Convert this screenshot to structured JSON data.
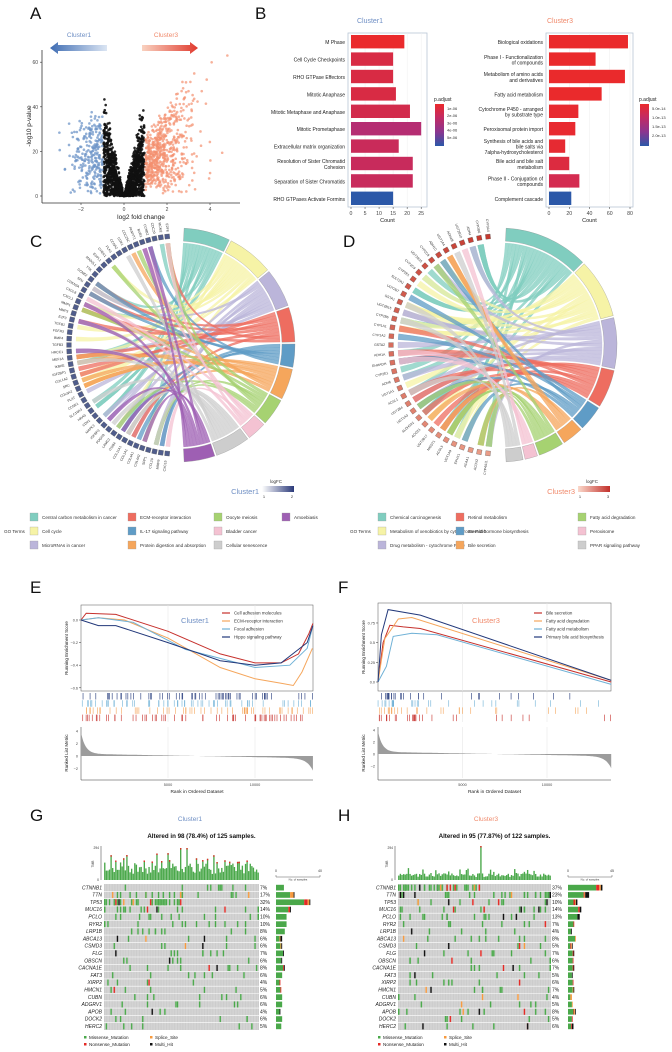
{
  "panel_letters": [
    "A",
    "B",
    "C",
    "D",
    "E",
    "F",
    "G",
    "H"
  ],
  "colors": {
    "cluster1": "#6f8fc4",
    "cluster3": "#f08a6c",
    "missense": "#4aa84a",
    "nonsense": "#e42a25",
    "splice": "#f79a3e",
    "multi_hit": "#111111",
    "grid_bg": "#cccccc"
  },
  "chart_data": [
    {
      "id": "A",
      "type": "scatter",
      "xlabel": "log2 fold change",
      "ylabel": "-log10 p-value",
      "xticks": [
        -2,
        0,
        2,
        4
      ],
      "yticks": [
        0,
        20,
        40,
        60
      ],
      "xlim": [
        -3.8,
        5.3
      ],
      "ylim": [
        -2,
        66
      ],
      "arrows": [
        {
          "label": "Cluster1",
          "direction": "left",
          "color": "#3f6db3"
        },
        {
          "label": "Cluster3",
          "direction": "right",
          "color": "#e03a2e"
        }
      ],
      "groups": [
        {
          "color": "#6f95c8",
          "rule": "log2FC < -1"
        },
        {
          "color": "#111111",
          "rule": "|log2FC| <= 1"
        },
        {
          "color": "#f4906f",
          "rule": "log2FC > 1"
        }
      ]
    },
    {
      "id": "B1",
      "type": "bar",
      "title": "Cluster1",
      "xlabel": "Count",
      "xticks": [
        0,
        5,
        10,
        15,
        20,
        25
      ],
      "xlim": [
        0,
        26
      ],
      "categories": [
        "M Phase",
        "Cell Cycle Checkpoints",
        "RHO GTPase Effectors",
        "Mitotic Anaphase",
        "Mitotic Metaphase and Anaphase",
        "Mitotic Prometaphase",
        "Extracellular matrix organization",
        "Resolution of Sister Chromatid\nCohesion",
        "Separation of Sister Chromatids",
        "RHO GTPases Activate Formins"
      ],
      "values": [
        19,
        15,
        15,
        16,
        21,
        25,
        17,
        22,
        22,
        15
      ],
      "bar_colors": [
        "#ea2a2c",
        "#d82b44",
        "#d82b44",
        "#d82b44",
        "#d22b4c",
        "#b52d72",
        "#c92b5a",
        "#c82b5c",
        "#c82b5c",
        "#2b58a8"
      ],
      "legend": {
        "title": "p.adjust",
        "labels": [
          "1e-06",
          "2e-06",
          "3e-06",
          "4e-06",
          "5e-06"
        ]
      }
    },
    {
      "id": "B3",
      "type": "bar",
      "title": "Cluster3",
      "xlabel": "Count",
      "xticks": [
        0,
        20,
        40,
        60,
        80
      ],
      "xlim": [
        0,
        80
      ],
      "categories": [
        "Biological oxidations",
        "Phase I - Functionalization\nof compounds",
        "Metabolism of amino acids\nand derivatives",
        "Fatty acid metabolism",
        "Cytochrome P450 - arranged\nby substrate type",
        "Peroxisomal protein import",
        "Synthesis of bile acids and\nbile salts via\n7alpha-hydroxycholesterol",
        "Bile acid and bile salt\nmetabolism",
        "Phase II - Conjugation of\ncompounds",
        "Complement cascade"
      ],
      "values": [
        78,
        46,
        75,
        52,
        29,
        26,
        16,
        20,
        30,
        22
      ],
      "bar_colors": [
        "#ea2a2c",
        "#ea2a2c",
        "#ea2a2c",
        "#ea2a2c",
        "#e82a30",
        "#e82a30",
        "#e62a32",
        "#dc2b40",
        "#d42b50",
        "#2b58a8"
      ],
      "legend": {
        "title": "p.adjust",
        "labels": [
          "5.0e-14",
          "1.0e-13",
          "1.5e-13",
          "2.0e-13"
        ]
      }
    },
    {
      "id": "C",
      "type": "chord",
      "cluster_label": "Cluster1",
      "legend_title": "GO Terms",
      "logfc": {
        "title": "logFC",
        "labels": [
          "1",
          "2"
        ],
        "low": "#ffffff",
        "high": "#2b3a7a"
      },
      "genes": [
        "E2F8",
        "MCM2",
        "CDC20",
        "CCNB2",
        "BUB1",
        "PKMYT1",
        "CDC25C",
        "CDK1",
        "CCNA2",
        "PLK1",
        "CHEK1",
        "ESPL1",
        "MAD2L1",
        "TTK",
        "CCNE2",
        "SFN",
        "CDKN2A",
        "CXCL8",
        "CXCL1",
        "MMP1",
        "MMP3",
        "E2F3",
        "TGFB1",
        "FGFR3",
        "BMP4",
        "TGFB3",
        "HRCC1",
        "MEF1A",
        "IKBKE",
        "IGF2BP1",
        "COL1A2",
        "SRC",
        "COL6A2",
        "PLAT",
        "CCNE1",
        "SLC16A3",
        "HRAS",
        "CDK1",
        "MAPK3",
        "IGFBP3",
        "PDGFB",
        "LAMC2",
        "ITGB4",
        "COL11A1",
        "COL1A1",
        "COL4A1",
        "COL4A2",
        "SPP1",
        "CCL20",
        "MMP9",
        "CXCL5"
      ],
      "terms": [
        {
          "name": "Central carbon metabolism in cancer",
          "color": "#80cdbf",
          "weight": 12
        },
        {
          "name": "Cell cycle",
          "color": "#f6f3a6",
          "weight": 12
        },
        {
          "name": "MicroRNAs in cancer",
          "color": "#bbb5da",
          "weight": 10
        },
        {
          "name": "ECM-receptor interaction",
          "color": "#ee6d60",
          "weight": 9
        },
        {
          "name": "IL-17 signaling pathway",
          "color": "#5f9cc6",
          "weight": 6
        },
        {
          "name": "Protein digestion and absorption",
          "color": "#f5a65c",
          "weight": 8
        },
        {
          "name": "Oocyte meiosis",
          "color": "#a6d271",
          "weight": 7
        },
        {
          "name": "Bladder cancer",
          "color": "#f4c2d2",
          "weight": 5
        },
        {
          "name": "Cellular senescence",
          "color": "#cdcdcd",
          "weight": 9
        },
        {
          "name": "Amoebiasis",
          "color": "#9e5fb3",
          "weight": 8
        }
      ]
    },
    {
      "id": "D",
      "type": "chord",
      "cluster_label": "Cluster3",
      "legend_title": "GO Terms",
      "logfc": {
        "title": "logFC",
        "labels": [
          "1",
          "3"
        ],
        "low": "#fbd9cb",
        "high": "#c2302b"
      },
      "genes": [
        "CYP3A4",
        "CYP2B6",
        "ADH4",
        "UGT2B10",
        "ADH1B",
        "UGT1A4",
        "ADH1C",
        "CYP2C8",
        "UGT2B15",
        "CYP2C9",
        "CYP2E1",
        "SULT2A1",
        "UGT2B7",
        "GSTA1",
        "UGT2B15",
        "CYP2B6",
        "CYP1A1",
        "CYP1A2",
        "GSTA2",
        "ADH1A",
        "EHHADH",
        "CYP2E1",
        "ADH6",
        "UGT1A1",
        "ACSL1",
        "UGT2B4",
        "UGT1A3",
        "ALDH3A1",
        "ACOX1",
        "UGT2B17",
        "MGST1",
        "ACSL5",
        "UGT1A9",
        "EPHX1",
        "ACAA1",
        "ACOX2",
        "CYP4A11"
      ],
      "terms": [
        {
          "name": "Chemical carcinogenesis",
          "color": "#80cdbf",
          "weight": 20
        },
        {
          "name": "Metabolism of xenobiotics by cytochrome P450",
          "color": "#f6f3a6",
          "weight": 14
        },
        {
          "name": "Drug metabolism - cytochrome P450",
          "color": "#bbb5da",
          "weight": 12
        },
        {
          "name": "Retinol metabolism",
          "color": "#ee6d60",
          "weight": 9
        },
        {
          "name": "Steroid hormone biosynthesis",
          "color": "#5f9cc6",
          "weight": 6
        },
        {
          "name": "Bile secretion",
          "color": "#f5a65c",
          "weight": 5
        },
        {
          "name": "Fatty acid degradation",
          "color": "#a6d271",
          "weight": 6
        },
        {
          "name": "Peroxisome",
          "color": "#f4c2d2",
          "weight": 3
        },
        {
          "name": "PPAR signaling pathway",
          "color": "#cdcdcd",
          "weight": 4
        }
      ]
    },
    {
      "id": "E",
      "type": "line",
      "title": "Cluster1",
      "xlabel": "Rank in Ordered Dataset",
      "ylabel": "Running Enrichment Score",
      "ylabel2": "Ranked List Metric",
      "xticks": [
        5000,
        10000
      ],
      "yticks": [
        0.0,
        -0.2,
        -0.4,
        -0.6
      ],
      "yticks2": [
        4,
        2,
        0,
        -2
      ],
      "xlim": [
        0,
        13330
      ],
      "series": [
        {
          "name": "Cell adhesion molecules",
          "color": "#c6302c",
          "points": [
            [
              0,
              0.0
            ],
            [
              300,
              0.06
            ],
            [
              2000,
              0.05
            ],
            [
              5000,
              -0.1
            ],
            [
              8000,
              -0.3
            ],
            [
              10000,
              -0.38
            ],
            [
              11500,
              -0.38
            ],
            [
              12500,
              -0.3
            ],
            [
              13100,
              -0.12
            ],
            [
              13330,
              -0.03
            ]
          ]
        },
        {
          "name": "ECM-receptor interaction",
          "color": "#f5a65c",
          "points": [
            [
              0,
              0.0
            ],
            [
              1000,
              0.02
            ],
            [
              2500,
              0.0
            ],
            [
              5000,
              -0.16
            ],
            [
              8000,
              -0.42
            ],
            [
              10000,
              -0.52
            ],
            [
              11500,
              -0.56
            ],
            [
              12200,
              -0.58
            ],
            [
              12700,
              -0.46
            ],
            [
              13300,
              -0.25
            ]
          ]
        },
        {
          "name": "Focal adhesion",
          "color": "#6fb1d6",
          "points": [
            [
              0,
              0.0
            ],
            [
              1000,
              0.02
            ],
            [
              3000,
              -0.02
            ],
            [
              6000,
              -0.26
            ],
            [
              9000,
              -0.38
            ],
            [
              10000,
              -0.42
            ],
            [
              12000,
              -0.4
            ],
            [
              13000,
              -0.25
            ],
            [
              13330,
              -0.05
            ]
          ]
        },
        {
          "name": "Hippo signaling pathway",
          "color": "#22387a",
          "points": [
            [
              0,
              0.0
            ],
            [
              1000,
              -0.05
            ],
            [
              2000,
              -0.05
            ],
            [
              5000,
              -0.2
            ],
            [
              8000,
              -0.36
            ],
            [
              10000,
              -0.4
            ],
            [
              11500,
              -0.38
            ],
            [
              13000,
              -0.2
            ],
            [
              13330,
              -0.05
            ]
          ]
        }
      ]
    },
    {
      "id": "F",
      "type": "line",
      "title": "Cluster3",
      "xlabel": "Rank in Ordered Dataset",
      "ylabel": "Running Enrichment Score",
      "ylabel2": "Ranked List Metric",
      "xticks": [
        5000,
        10000
      ],
      "yticks": [
        0.0,
        0.25,
        0.5,
        0.75
      ],
      "yticks2": [
        4,
        2,
        0,
        -2
      ],
      "xlim": [
        0,
        13800
      ],
      "series": [
        {
          "name": "Bile secretion",
          "color": "#c6302c",
          "points": [
            [
              0,
              0.0
            ],
            [
              300,
              0.5
            ],
            [
              700,
              0.72
            ],
            [
              1500,
              0.7
            ],
            [
              2500,
              0.68
            ],
            [
              13800,
              0.0
            ]
          ]
        },
        {
          "name": "Fatty acid degradation",
          "color": "#f5a65c",
          "points": [
            [
              0,
              0.0
            ],
            [
              400,
              0.55
            ],
            [
              1200,
              0.8
            ],
            [
              2000,
              0.82
            ],
            [
              13800,
              0.02
            ]
          ]
        },
        {
          "name": "Fatty acid metabolism",
          "color": "#6fb1d6",
          "points": [
            [
              0,
              0.0
            ],
            [
              500,
              0.2
            ],
            [
              900,
              0.58
            ],
            [
              2000,
              0.62
            ],
            [
              3500,
              0.6
            ],
            [
              13800,
              -0.03
            ]
          ]
        },
        {
          "name": "Primary bile acid biosynthesis",
          "color": "#22387a",
          "points": [
            [
              0,
              0.0
            ],
            [
              200,
              0.6
            ],
            [
              600,
              0.92
            ],
            [
              2500,
              0.85
            ],
            [
              13800,
              0.02
            ]
          ]
        }
      ]
    },
    {
      "id": "G",
      "type": "heatmap",
      "title": "Cluster1",
      "subtitle": "Altered in 98 (78.4%) of 125 samples.",
      "tmb_axis": [
        "294",
        "0"
      ],
      "tmb_label": "TMB",
      "side_axis": [
        "0",
        "40"
      ],
      "side_max": 40,
      "side_label": "No. of samples",
      "n_samples": 98,
      "genes": [
        "CTNNB1",
        "TTN",
        "TP53",
        "MUC16",
        "PCLO",
        "RYR2",
        "LRP1B",
        "ABCA13",
        "CSMD3",
        "FLG",
        "OBSCN",
        "CACNA1E",
        "FAT3",
        "XIRP2",
        "HMCN1",
        "CUBN",
        "ADGRV1",
        "APOB",
        "DOCK2",
        "HERC2"
      ],
      "percents": [
        "7%",
        "17%",
        "32%",
        "14%",
        "10%",
        "10%",
        "8%",
        "6%",
        "6%",
        "7%",
        "6%",
        "8%",
        "6%",
        "4%",
        "5%",
        "6%",
        "6%",
        "4%",
        "6%",
        "5%"
      ],
      "legend": [
        "Missense_Mutation",
        "Splice_Site",
        "Nonsense_Mutation",
        "Multi_Hit"
      ]
    },
    {
      "id": "H",
      "type": "heatmap",
      "title": "Cluster3",
      "subtitle": "Altered in 95 (77.87%) of 122 samples.",
      "tmb_axis": [
        "294",
        "0"
      ],
      "tmb_label": "TMB",
      "side_axis": [
        "0",
        "45"
      ],
      "side_max": 45,
      "side_label": "No. of samples",
      "n_samples": 95,
      "genes": [
        "CTNNB1",
        "TTN",
        "TP53",
        "MUC16",
        "PCLO",
        "RYR2",
        "LRP1B",
        "ABCA13",
        "CSMD3",
        "FLG",
        "OBSCN",
        "CACNA1E",
        "FAT3",
        "XIRP2",
        "HMCN1",
        "CUBN",
        "ADGRV1",
        "APOB",
        "DOCK2",
        "HERC2"
      ],
      "percents": [
        "37%",
        "23%",
        "10%",
        "14%",
        "13%",
        "7%",
        "4%",
        "8%",
        "5%",
        "7%",
        "6%",
        "7%",
        "5%",
        "6%",
        "7%",
        "4%",
        "5%",
        "8%",
        "5%",
        "6%"
      ],
      "legend": [
        "Missense_Mutation",
        "Splice_Site",
        "Nonsense_Mutation",
        "Multi_Hit"
      ]
    }
  ]
}
